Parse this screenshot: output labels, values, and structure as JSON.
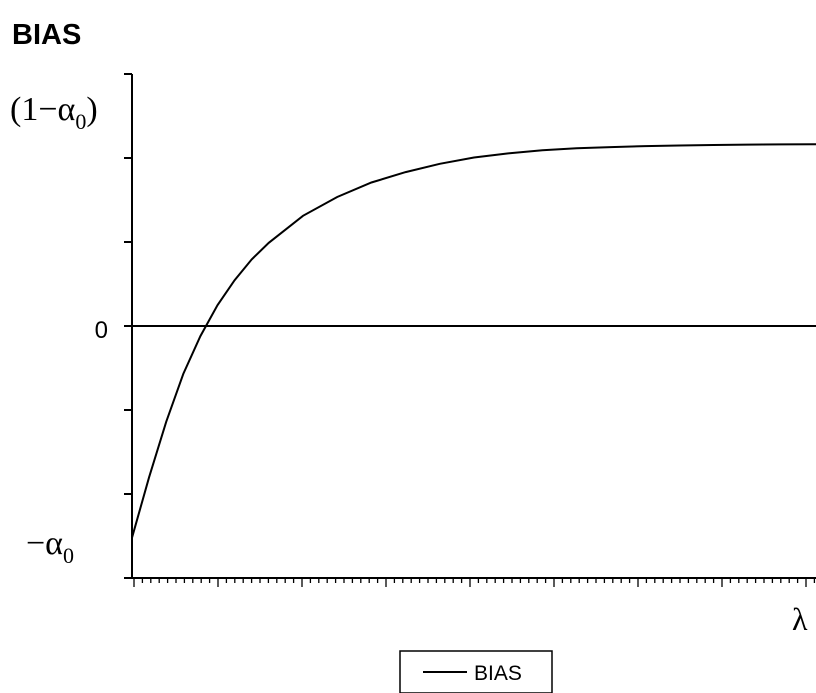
{
  "chart_data": {
    "type": "line",
    "title": "BIAS",
    "xlabel": "λ",
    "ylabel": "",
    "y_tick_labels": [
      {
        "label": "(1−α",
        "sub": "0",
        "tail": ")",
        "value": 1.0
      },
      {
        "label": "0",
        "value": 0.0
      },
      {
        "label": "−α",
        "sub": "0",
        "value": -1.0
      }
    ],
    "ylim": [
      -1.0,
      1.0
    ],
    "xlim": [
      0,
      1
    ],
    "grid": false,
    "legend_position": "bottom-center",
    "series": [
      {
        "name": "BIAS",
        "color": "#000000",
        "x": [
          0.0,
          0.025,
          0.05,
          0.075,
          0.1,
          0.125,
          0.15,
          0.175,
          0.2,
          0.25,
          0.3,
          0.35,
          0.4,
          0.45,
          0.5,
          0.55,
          0.6,
          0.65,
          0.7,
          0.75,
          0.8,
          0.85,
          0.9,
          0.95,
          1.0
        ],
        "values": [
          -0.84,
          -0.6,
          -0.38,
          -0.19,
          -0.04,
          0.1,
          0.22,
          0.32,
          0.4,
          0.53,
          0.62,
          0.69,
          0.74,
          0.78,
          0.81,
          0.83,
          0.845,
          0.855,
          0.86,
          0.865,
          0.868,
          0.87,
          0.872,
          0.873,
          0.874
        ]
      }
    ]
  }
}
